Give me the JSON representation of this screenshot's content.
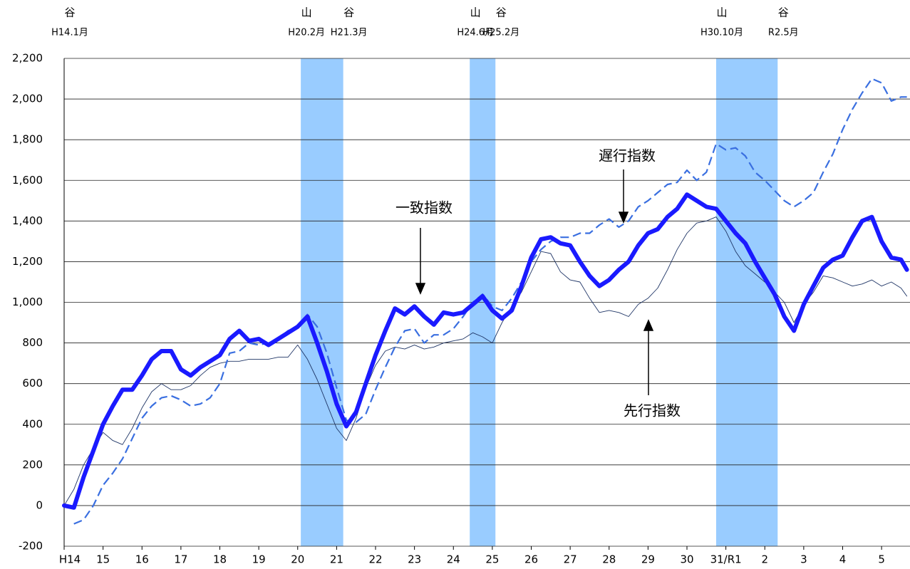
{
  "chart_data": {
    "type": "line",
    "x": [
      0,
      0.25,
      0.5,
      0.75,
      1,
      1.25,
      1.5,
      1.75,
      2,
      2.25,
      2.5,
      2.75,
      3,
      3.25,
      3.5,
      3.75,
      4,
      4.25,
      4.5,
      4.75,
      5,
      5.25,
      5.5,
      5.75,
      6,
      6.25,
      6.5,
      6.75,
      7,
      7.25,
      7.5,
      7.75,
      8,
      8.25,
      8.5,
      8.75,
      9,
      9.25,
      9.5,
      9.75,
      10,
      10.25,
      10.5,
      10.75,
      11,
      11.25,
      11.5,
      11.75,
      12,
      12.25,
      12.5,
      12.75,
      13,
      13.25,
      13.5,
      13.75,
      14,
      14.25,
      14.5,
      14.75,
      15,
      15.25,
      15.5,
      15.75,
      16,
      16.25,
      16.5,
      16.75,
      17,
      17.25,
      17.5,
      17.75,
      18,
      18.25,
      18.5,
      18.75,
      19,
      19.25,
      19.5,
      19.75,
      20,
      20.25,
      20.5,
      20.75,
      21,
      21.25,
      21.5,
      21.65
    ],
    "series": [
      {
        "name": "先行指数",
        "color": "#1f3566",
        "width": 0.9,
        "dashed": false,
        "values": [
          0,
          80,
          200,
          280,
          360,
          320,
          300,
          380,
          480,
          560,
          600,
          570,
          570,
          590,
          640,
          680,
          700,
          710,
          710,
          720,
          720,
          720,
          730,
          730,
          790,
          720,
          620,
          500,
          380,
          320,
          430,
          580,
          690,
          760,
          780,
          770,
          790,
          770,
          780,
          800,
          810,
          820,
          850,
          830,
          800,
          900,
          980,
          1050,
          1150,
          1250,
          1240,
          1150,
          1110,
          1100,
          1020,
          950,
          960,
          950,
          930,
          990,
          1020,
          1070,
          1160,
          1260,
          1340,
          1390,
          1400,
          1420,
          1350,
          1250,
          1180,
          1140,
          1100,
          1050,
          1000,
          900,
          990,
          1050,
          1130,
          1120,
          1100,
          1080,
          1090,
          1110,
          1080,
          1100,
          1070,
          1030
        ]
      },
      {
        "name": "遅行指数",
        "color": "#3a6fe0",
        "width": 2.2,
        "dashed": true,
        "values": [
          null,
          -90,
          -70,
          0,
          100,
          160,
          230,
          330,
          430,
          490,
          530,
          540,
          520,
          490,
          500,
          530,
          600,
          750,
          760,
          800,
          790,
          800,
          820,
          860,
          880,
          940,
          880,
          750,
          580,
          420,
          410,
          450,
          570,
          680,
          780,
          860,
          870,
          800,
          840,
          840,
          870,
          930,
          1000,
          1040,
          980,
          960,
          1020,
          1100,
          1200,
          1260,
          1300,
          1320,
          1320,
          1340,
          1340,
          1380,
          1410,
          1370,
          1400,
          1470,
          1500,
          1540,
          1580,
          1590,
          1650,
          1600,
          1640,
          1780,
          1750,
          1760,
          1720,
          1640,
          1600,
          1550,
          1500,
          1470,
          1500,
          1540,
          1640,
          1730,
          1850,
          1950,
          2030,
          2100,
          2080,
          1990,
          2010,
          2010
        ]
      },
      {
        "name": "一致指数",
        "color": "#1a1aff",
        "width": 6,
        "dashed": false,
        "values": [
          0,
          -10,
          140,
          270,
          400,
          490,
          570,
          570,
          640,
          720,
          760,
          760,
          670,
          640,
          680,
          710,
          740,
          820,
          860,
          810,
          820,
          790,
          820,
          850,
          880,
          930,
          800,
          660,
          500,
          390,
          460,
          600,
          740,
          860,
          970,
          940,
          980,
          930,
          890,
          950,
          940,
          950,
          990,
          1030,
          960,
          920,
          960,
          1080,
          1220,
          1310,
          1320,
          1290,
          1280,
          1200,
          1130,
          1080,
          1110,
          1160,
          1200,
          1280,
          1340,
          1360,
          1420,
          1460,
          1530,
          1500,
          1470,
          1460,
          1400,
          1340,
          1290,
          1200,
          1120,
          1040,
          930,
          860,
          990,
          1080,
          1170,
          1210,
          1230,
          1320,
          1400,
          1420,
          1300,
          1220,
          1210,
          1160
        ]
      }
    ],
    "turning_points": [
      {
        "kind": "谷",
        "date": "H14.1月",
        "x": 0
      },
      {
        "kind": "山",
        "date": "H20.2月",
        "x": 6.08
      },
      {
        "kind": "谷",
        "date": "H21.3月",
        "x": 7.17
      },
      {
        "kind": "山",
        "date": "H24.6月",
        "x": 10.42
      },
      {
        "kind": "谷",
        "date": "H25.2月",
        "x": 11.08
      },
      {
        "kind": "山",
        "date": "H30.10月",
        "x": 16.75
      },
      {
        "kind": "谷",
        "date": "R2.5月",
        "x": 18.33
      }
    ],
    "band_color": "#99ccff",
    "xlim": [
      0,
      21.73
    ],
    "xticks": [
      {
        "value": 0,
        "label": "H14"
      },
      {
        "value": 1,
        "label": "15"
      },
      {
        "value": 2,
        "label": "16"
      },
      {
        "value": 3,
        "label": "17"
      },
      {
        "value": 4,
        "label": "18"
      },
      {
        "value": 5,
        "label": "19"
      },
      {
        "value": 6,
        "label": "20"
      },
      {
        "value": 7,
        "label": "21"
      },
      {
        "value": 8,
        "label": "22"
      },
      {
        "value": 9,
        "label": "23"
      },
      {
        "value": 10,
        "label": "24"
      },
      {
        "value": 11,
        "label": "25"
      },
      {
        "value": 12,
        "label": "26"
      },
      {
        "value": 13,
        "label": "27"
      },
      {
        "value": 14,
        "label": "28"
      },
      {
        "value": 15,
        "label": "29"
      },
      {
        "value": 16,
        "label": "30"
      },
      {
        "value": 17,
        "label": "31/R1"
      },
      {
        "value": 18,
        "label": "2"
      },
      {
        "value": 19,
        "label": "3"
      },
      {
        "value": 20,
        "label": "4"
      },
      {
        "value": 21,
        "label": "5"
      }
    ],
    "ylim": [
      -200,
      2200
    ],
    "yticks": [
      -200,
      0,
      200,
      400,
      600,
      800,
      {
        "value": 1000,
        "label": "1,000"
      },
      {
        "value": 1200,
        "label": "1,200"
      },
      {
        "value": 1400,
        "label": "1,400"
      },
      {
        "value": 1600,
        "label": "1,600"
      },
      {
        "value": 1800,
        "label": "1,800"
      },
      {
        "value": 2000,
        "label": "2,000"
      },
      {
        "value": 2200,
        "label": "2,200"
      }
    ],
    "grid": true
  }
}
